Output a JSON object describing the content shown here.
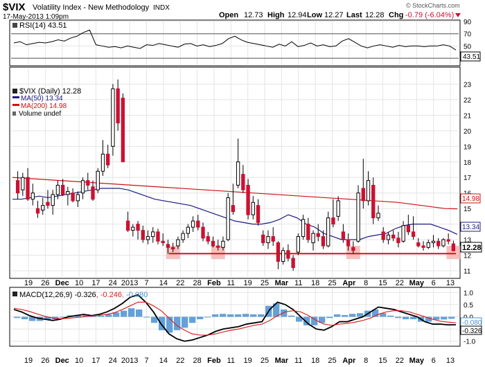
{
  "header": {
    "symbol": "$VIX",
    "name": "Volatility Index - New Methodology",
    "exchange": "INDX",
    "date": "17-May-2013 1:09pm",
    "ohlc": {
      "open_label": "Open",
      "open": "12.73",
      "high_label": "High",
      "high": "12.94",
      "low_label": "Low",
      "low": "12.27",
      "last_label": "Last",
      "last": "12.28",
      "chg_label": "Chg",
      "chg": "-0.79 (-6.04%)"
    },
    "watermark": "© StockCharts.com"
  },
  "colors": {
    "up_candle": "#ffffff",
    "down_candle": "#cc1133",
    "ma50": "#1a1a80",
    "ma200": "#cc1111",
    "macd_line": "#000000",
    "signal_line": "#dd2222",
    "histogram": "#4a90d0",
    "support_line": "#dd1111",
    "highlight": "#f4b0b0"
  },
  "rsi_panel": {
    "legend": "RSI(14) 43.51",
    "last_value_label": "43.51"
  },
  "price_panel": {
    "legend_main": "$VIX (Daily) 12.28",
    "legend_ma50": "MA(50) 13.34",
    "legend_ma200": "MA(200) 14.98",
    "legend_volume": "Volume undef",
    "value_labels": {
      "ma200": "14.98",
      "ma50": "13.34",
      "last": "12.28"
    }
  },
  "macd_panel": {
    "legend_prefix": "MACD(12,26,9)",
    "macd_value": "-0.326",
    "signal_value": "-0.246",
    "hist_value": "-0.080",
    "value_labels": {
      "hist": "-0.080",
      "macd": "-0.326"
    }
  },
  "x_axis": {
    "labels": [
      "19",
      "26",
      "Dec",
      "10",
      "17",
      "24",
      "2013",
      "7",
      "14",
      "22",
      "28",
      "Feb",
      "11",
      "19",
      "25",
      "Mar",
      "11",
      "18",
      "25",
      "Apr",
      "8",
      "15",
      "22",
      "May",
      "6",
      "13"
    ]
  },
  "chart_data": [
    {
      "type": "line",
      "title": "RSI(14) 43.51",
      "ylim": [
        20,
        90
      ],
      "yticks": [
        30,
        50,
        70,
        90
      ],
      "reference_levels": [
        30,
        70
      ],
      "series": [
        {
          "name": "RSI(14)",
          "values": [
            55,
            57,
            52,
            54,
            56,
            55,
            57,
            60,
            58,
            63,
            66,
            72,
            76,
            52,
            50,
            48,
            49,
            47,
            50,
            48,
            46,
            52,
            51,
            54,
            52,
            50,
            48,
            53,
            54,
            50,
            52,
            49,
            51,
            54,
            62,
            66,
            60,
            56,
            54,
            52,
            50,
            48,
            53,
            50,
            57,
            49,
            51,
            55,
            50,
            52,
            49,
            50,
            58,
            62,
            56,
            50,
            47,
            50,
            52,
            50,
            48,
            51,
            49,
            50,
            50,
            49,
            50,
            50,
            52,
            50,
            43.51
          ]
        }
      ]
    },
    {
      "type": "candlestick",
      "title": "$VIX (Daily) 12.28",
      "ylim": [
        10.6,
        24
      ],
      "yticks": [
        11,
        12,
        13,
        14,
        15,
        16,
        17,
        18,
        19,
        20,
        21,
        22,
        23
      ],
      "support_level": 12.1,
      "highlight_periods": [
        "Jan 21",
        "Feb 19",
        "Apr 12",
        "May 17"
      ],
      "candles": [
        {
          "o": 16.8,
          "h": 17.4,
          "l": 15.6,
          "c": 16.0
        },
        {
          "o": 16.2,
          "h": 17.3,
          "l": 15.8,
          "c": 17.0
        },
        {
          "o": 17.0,
          "h": 17.6,
          "l": 15.5,
          "c": 15.6
        },
        {
          "o": 15.6,
          "h": 16.6,
          "l": 15.2,
          "c": 16.0
        },
        {
          "o": 15.0,
          "h": 15.5,
          "l": 14.4,
          "c": 14.7
        },
        {
          "o": 14.9,
          "h": 15.7,
          "l": 14.6,
          "c": 15.2
        },
        {
          "o": 15.4,
          "h": 16.2,
          "l": 15.0,
          "c": 15.2
        },
        {
          "o": 15.2,
          "h": 16.2,
          "l": 14.6,
          "c": 15.9
        },
        {
          "o": 15.9,
          "h": 16.8,
          "l": 15.6,
          "c": 16.5
        },
        {
          "o": 16.5,
          "h": 16.9,
          "l": 15.8,
          "c": 15.9
        },
        {
          "o": 15.9,
          "h": 16.4,
          "l": 15.2,
          "c": 16.1
        },
        {
          "o": 16.0,
          "h": 16.3,
          "l": 15.4,
          "c": 15.5
        },
        {
          "o": 15.5,
          "h": 16.1,
          "l": 15.1,
          "c": 15.9
        },
        {
          "o": 16.0,
          "h": 17.0,
          "l": 15.6,
          "c": 16.8
        },
        {
          "o": 16.8,
          "h": 17.3,
          "l": 16.2,
          "c": 16.5
        },
        {
          "o": 16.4,
          "h": 16.8,
          "l": 15.5,
          "c": 15.6
        },
        {
          "o": 16.2,
          "h": 17.6,
          "l": 16.0,
          "c": 17.4
        },
        {
          "o": 17.4,
          "h": 19.4,
          "l": 17.1,
          "c": 18.5
        },
        {
          "o": 18.5,
          "h": 19.1,
          "l": 17.6,
          "c": 17.8
        },
        {
          "o": 19.0,
          "h": 23.0,
          "l": 18.4,
          "c": 22.7
        },
        {
          "o": 22.7,
          "h": 23.3,
          "l": 20.0,
          "c": 20.5
        },
        {
          "o": 22.1,
          "h": 22.4,
          "l": 18.0,
          "c": 18.0
        },
        {
          "o": 14.2,
          "h": 14.8,
          "l": 13.5,
          "c": 13.6
        },
        {
          "o": 13.6,
          "h": 14.0,
          "l": 13.2,
          "c": 13.8
        },
        {
          "o": 14.0,
          "h": 14.2,
          "l": 13.0,
          "c": 13.6
        },
        {
          "o": 13.6,
          "h": 13.9,
          "l": 12.8,
          "c": 13.0
        },
        {
          "o": 13.0,
          "h": 13.6,
          "l": 12.7,
          "c": 13.2
        },
        {
          "o": 13.2,
          "h": 13.8,
          "l": 12.8,
          "c": 13.5
        },
        {
          "o": 13.5,
          "h": 13.7,
          "l": 12.7,
          "c": 12.9
        },
        {
          "o": 12.9,
          "h": 13.4,
          "l": 12.6,
          "c": 12.8
        },
        {
          "o": 12.7,
          "h": 13.0,
          "l": 12.1,
          "c": 12.5
        },
        {
          "o": 12.5,
          "h": 12.8,
          "l": 12.2,
          "c": 12.4
        },
        {
          "o": 12.6,
          "h": 13.2,
          "l": 12.4,
          "c": 13.0
        },
        {
          "o": 13.0,
          "h": 13.6,
          "l": 12.8,
          "c": 13.4
        },
        {
          "o": 13.4,
          "h": 14.0,
          "l": 13.1,
          "c": 13.8
        },
        {
          "o": 13.8,
          "h": 14.5,
          "l": 13.5,
          "c": 14.2
        },
        {
          "o": 14.2,
          "h": 14.6,
          "l": 13.6,
          "c": 13.8
        },
        {
          "o": 13.8,
          "h": 14.1,
          "l": 12.9,
          "c": 13.1
        },
        {
          "o": 13.2,
          "h": 13.5,
          "l": 12.7,
          "c": 12.9
        },
        {
          "o": 12.9,
          "h": 13.2,
          "l": 12.5,
          "c": 12.6
        },
        {
          "o": 12.6,
          "h": 13.0,
          "l": 12.3,
          "c": 12.5
        },
        {
          "o": 12.5,
          "h": 13.2,
          "l": 12.3,
          "c": 12.9
        },
        {
          "o": 13.0,
          "h": 16.0,
          "l": 12.9,
          "c": 15.7
        },
        {
          "o": 15.2,
          "h": 16.6,
          "l": 14.6,
          "c": 14.8
        },
        {
          "o": 16.5,
          "h": 19.5,
          "l": 16.3,
          "c": 18.0
        },
        {
          "o": 17.2,
          "h": 17.8,
          "l": 16.0,
          "c": 16.2
        },
        {
          "o": 16.5,
          "h": 16.9,
          "l": 14.3,
          "c": 14.6
        },
        {
          "o": 14.6,
          "h": 15.8,
          "l": 14.3,
          "c": 15.4
        },
        {
          "o": 15.2,
          "h": 15.6,
          "l": 13.9,
          "c": 14.1
        },
        {
          "o": 13.3,
          "h": 13.6,
          "l": 12.6,
          "c": 12.8
        },
        {
          "o": 12.8,
          "h": 13.6,
          "l": 12.4,
          "c": 13.2
        },
        {
          "o": 13.2,
          "h": 13.8,
          "l": 12.6,
          "c": 12.9
        },
        {
          "o": 12.8,
          "h": 12.9,
          "l": 11.1,
          "c": 11.6
        },
        {
          "o": 11.6,
          "h": 12.5,
          "l": 11.4,
          "c": 12.3
        },
        {
          "o": 12.3,
          "h": 12.7,
          "l": 11.6,
          "c": 11.8
        },
        {
          "o": 11.8,
          "h": 12.0,
          "l": 11.0,
          "c": 11.2
        },
        {
          "o": 12.2,
          "h": 13.4,
          "l": 12.0,
          "c": 13.2
        },
        {
          "o": 13.2,
          "h": 14.6,
          "l": 13.0,
          "c": 14.3
        },
        {
          "o": 14.0,
          "h": 14.4,
          "l": 12.8,
          "c": 13.0
        },
        {
          "o": 12.8,
          "h": 13.6,
          "l": 12.3,
          "c": 13.4
        },
        {
          "o": 13.4,
          "h": 14.0,
          "l": 12.9,
          "c": 13.2
        },
        {
          "o": 13.2,
          "h": 13.6,
          "l": 12.4,
          "c": 12.6
        },
        {
          "o": 12.6,
          "h": 14.8,
          "l": 12.5,
          "c": 14.4
        },
        {
          "o": 14.4,
          "h": 15.6,
          "l": 13.8,
          "c": 14.0
        },
        {
          "o": 14.5,
          "h": 15.8,
          "l": 14.2,
          "c": 15.5
        },
        {
          "o": 13.5,
          "h": 14.0,
          "l": 12.8,
          "c": 13.0
        },
        {
          "o": 13.0,
          "h": 13.4,
          "l": 12.3,
          "c": 12.6
        },
        {
          "o": 12.5,
          "h": 12.9,
          "l": 12.1,
          "c": 12.3
        },
        {
          "o": 12.9,
          "h": 16.5,
          "l": 12.8,
          "c": 16.0
        },
        {
          "o": 16.3,
          "h": 18.2,
          "l": 15.0,
          "c": 15.5
        },
        {
          "o": 15.5,
          "h": 17.4,
          "l": 15.2,
          "c": 16.8
        },
        {
          "o": 16.5,
          "h": 17.0,
          "l": 14.0,
          "c": 14.4
        },
        {
          "o": 14.4,
          "h": 15.2,
          "l": 14.2,
          "c": 14.7
        },
        {
          "o": 13.5,
          "h": 13.8,
          "l": 12.8,
          "c": 13.0
        },
        {
          "o": 13.0,
          "h": 13.5,
          "l": 12.7,
          "c": 13.3
        },
        {
          "o": 13.3,
          "h": 13.6,
          "l": 12.9,
          "c": 13.1
        },
        {
          "o": 13.1,
          "h": 13.5,
          "l": 12.5,
          "c": 12.8
        },
        {
          "o": 12.9,
          "h": 14.2,
          "l": 12.8,
          "c": 13.9
        },
        {
          "o": 13.9,
          "h": 14.6,
          "l": 13.3,
          "c": 13.5
        },
        {
          "o": 13.5,
          "h": 14.5,
          "l": 13.0,
          "c": 13.2
        },
        {
          "o": 12.8,
          "h": 13.1,
          "l": 12.5,
          "c": 12.6
        },
        {
          "o": 12.6,
          "h": 12.9,
          "l": 12.3,
          "c": 12.5
        },
        {
          "o": 12.5,
          "h": 13.0,
          "l": 12.4,
          "c": 12.8
        },
        {
          "o": 12.8,
          "h": 13.3,
          "l": 12.5,
          "c": 12.9
        },
        {
          "o": 12.9,
          "h": 13.1,
          "l": 12.4,
          "c": 12.6
        },
        {
          "o": 12.6,
          "h": 13.1,
          "l": 12.5,
          "c": 13.0
        },
        {
          "o": 13.0,
          "h": 13.4,
          "l": 12.7,
          "c": 12.9
        },
        {
          "o": 12.73,
          "h": 12.94,
          "l": 12.27,
          "c": 12.28
        }
      ],
      "series": [
        {
          "name": "MA(50)",
          "values": [
            15.6,
            15.6,
            15.7,
            15.8,
            15.7,
            15.8,
            15.9,
            16.0,
            16.1,
            16.2,
            16.3,
            16.3,
            16.3,
            16.2,
            16.0,
            15.8,
            15.6,
            15.5,
            15.4,
            15.3,
            15.2,
            15.0,
            14.8,
            14.6,
            14.4,
            14.2,
            14.1,
            14.0,
            14.0,
            14.1,
            14.3,
            14.6,
            14.4,
            14.0,
            13.8,
            13.4,
            13.2,
            13.0,
            13.0,
            13.0,
            13.2,
            13.3,
            13.4,
            13.7,
            13.9,
            14.0,
            14.0,
            14.0,
            13.8,
            13.6,
            13.34
          ]
        },
        {
          "name": "MA(200)",
          "values": [
            17.0,
            16.95,
            16.9,
            16.85,
            16.8,
            16.75,
            16.7,
            16.65,
            16.6,
            16.55,
            16.5,
            16.45,
            16.4,
            16.35,
            16.3,
            16.25,
            16.2,
            16.15,
            16.1,
            16.05,
            16.0,
            15.95,
            15.9,
            15.85,
            15.8,
            15.75,
            15.7,
            15.65,
            15.6,
            15.55,
            15.5,
            15.45,
            15.4,
            15.3,
            15.2,
            15.1,
            15.0,
            14.98
          ]
        }
      ]
    },
    {
      "type": "line",
      "title": "MACD(12,26,9) -0.326, -0.246, -0.080",
      "ylim": [
        -1.15,
        1.15
      ],
      "yticks": [
        -1.0,
        -0.5,
        0.0,
        0.5,
        1.0
      ],
      "series": [
        {
          "name": "MACD(12,26,9)",
          "values": [
            0.3,
            0.2,
            0.05,
            -0.05,
            -0.1,
            -0.15,
            -0.1,
            0.0,
            0.05,
            0.1,
            0.05,
            0.1,
            0.2,
            0.35,
            0.55,
            0.8,
            0.9,
            0.6,
            0.2,
            -0.3,
            -0.7,
            -0.9,
            -1.0,
            -0.95,
            -0.85,
            -0.75,
            -0.6,
            -0.5,
            -0.45,
            -0.4,
            -0.3,
            -0.25,
            -0.2,
            0.3,
            0.6,
            0.5,
            0.3,
            0.0,
            -0.3,
            -0.5,
            -0.55,
            -0.4,
            -0.2,
            -0.2,
            -0.1,
            0.0,
            0.2,
            0.4,
            0.35,
            0.3,
            0.2,
            0.1,
            0.0,
            -0.2,
            -0.3,
            -0.3,
            -0.33,
            -0.326
          ]
        },
        {
          "name": "signal",
          "values": [
            0.35,
            0.3,
            0.22,
            0.12,
            0.02,
            -0.05,
            -0.08,
            -0.06,
            -0.03,
            0.0,
            0.03,
            0.06,
            0.1,
            0.17,
            0.3,
            0.45,
            0.6,
            0.6,
            0.45,
            0.25,
            -0.05,
            -0.35,
            -0.55,
            -0.7,
            -0.75,
            -0.75,
            -0.7,
            -0.62,
            -0.55,
            -0.5,
            -0.42,
            -0.35,
            -0.3,
            -0.15,
            0.05,
            0.2,
            0.25,
            0.2,
            0.05,
            -0.15,
            -0.3,
            -0.35,
            -0.3,
            -0.27,
            -0.22,
            -0.15,
            -0.05,
            0.1,
            0.2,
            0.25,
            0.25,
            0.2,
            0.1,
            0.0,
            -0.1,
            -0.18,
            -0.22,
            -0.246
          ]
        }
      ],
      "histogram": [
        -0.05,
        -0.1,
        -0.17,
        -0.17,
        -0.12,
        -0.1,
        -0.02,
        0.06,
        0.08,
        0.1,
        0.02,
        0.04,
        0.1,
        0.18,
        0.25,
        0.35,
        0.3,
        0.0,
        -0.25,
        -0.55,
        -0.65,
        -0.55,
        -0.45,
        -0.25,
        -0.1,
        0.0,
        0.1,
        0.12,
        0.1,
        0.1,
        0.12,
        0.1,
        0.1,
        0.45,
        0.55,
        0.3,
        0.05,
        -0.2,
        -0.35,
        -0.35,
        -0.25,
        -0.05,
        0.1,
        0.07,
        0.12,
        0.15,
        0.25,
        0.3,
        0.15,
        0.05,
        -0.05,
        -0.1,
        -0.1,
        -0.2,
        -0.2,
        -0.12,
        -0.11,
        -0.08
      ]
    }
  ]
}
